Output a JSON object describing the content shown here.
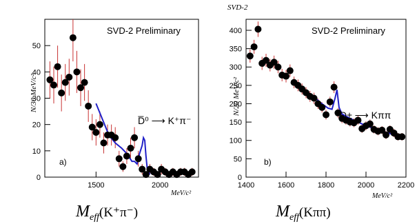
{
  "top_label": "SVD-2",
  "chart_data": [
    {
      "type": "scatter",
      "panel_label": "a)",
      "preliminary": "SVD-2 Preliminary",
      "decay": "D̅⁰ ⟶ K⁺π⁻",
      "ylabel": "N/30 MeV/c²",
      "xlabel": "M_eff(K⁺π⁻)",
      "xlabel_main": "M",
      "xlabel_sub": "eff",
      "xlabel_paren": "(K⁺π⁻)",
      "xunit": "MeV/c²",
      "xlim": [
        1100,
        2300
      ],
      "ylim": [
        0,
        60
      ],
      "xticks": [
        1500,
        2000
      ],
      "yticks": [
        0,
        10,
        20,
        30,
        40,
        50
      ],
      "x": [
        1140,
        1170,
        1200,
        1230,
        1260,
        1290,
        1320,
        1350,
        1380,
        1410,
        1440,
        1470,
        1500,
        1530,
        1560,
        1590,
        1620,
        1650,
        1680,
        1710,
        1740,
        1770,
        1800,
        1830,
        1860,
        1890,
        1920,
        1950,
        1980,
        2010,
        2040,
        2070,
        2100,
        2130,
        2160,
        2190,
        2220,
        2250
      ],
      "y": [
        37,
        35,
        42,
        32,
        36,
        38,
        53,
        40,
        34,
        36,
        27,
        19,
        17,
        20,
        13,
        16,
        16,
        15,
        7,
        4,
        8,
        11,
        15,
        7,
        3,
        1,
        3,
        2,
        1,
        3,
        2,
        1,
        2,
        1,
        2,
        2,
        1,
        2
      ],
      "yerr": [
        7,
        7,
        8,
        7,
        7,
        7,
        9,
        8,
        7,
        7,
        6,
        5,
        5,
        5,
        4,
        4,
        4,
        4,
        3,
        2,
        3,
        4,
        4,
        3,
        2,
        1,
        2,
        1.5,
        1,
        2,
        1.5,
        1,
        1.5,
        1,
        1.5,
        1.5,
        1,
        1.5
      ],
      "fit": {
        "x": [
          1500,
          1550,
          1600,
          1650,
          1700,
          1740,
          1760,
          1780,
          1800,
          1820,
          1840,
          1860,
          1870,
          1880,
          1890,
          1900,
          1920
        ],
        "y": [
          28,
          22,
          16,
          13,
          11,
          9,
          7.5,
          6,
          6,
          5,
          9,
          12,
          15,
          14,
          8,
          3,
          1
        ]
      }
    },
    {
      "type": "scatter",
      "panel_label": "b)",
      "preliminary": "SVD-2 Preliminary",
      "decay": "D± ⟶ Kππ",
      "ylabel": "N/20 MeV/c²",
      "xlabel": "M_eff(Kππ)",
      "xlabel_main": "M",
      "xlabel_sub": "eff",
      "xlabel_paren": "(Kππ)",
      "xunit": "MeV/c²",
      "xlim": [
        1400,
        2200
      ],
      "ylim": [
        0,
        430
      ],
      "xticks": [
        1400,
        1600,
        1800,
        2000,
        2200
      ],
      "yticks": [
        0,
        50,
        100,
        150,
        200,
        250,
        300,
        350,
        400
      ],
      "x": [
        1420,
        1440,
        1460,
        1480,
        1500,
        1520,
        1540,
        1560,
        1580,
        1600,
        1620,
        1640,
        1660,
        1680,
        1700,
        1720,
        1740,
        1760,
        1780,
        1800,
        1820,
        1840,
        1860,
        1880,
        1900,
        1920,
        1940,
        1960,
        1980,
        2000,
        2020,
        2040,
        2060,
        2080,
        2100,
        2120,
        2140,
        2160,
        2180
      ],
      "y": [
        330,
        355,
        403,
        310,
        318,
        305,
        313,
        300,
        278,
        275,
        290,
        258,
        250,
        240,
        230,
        220,
        215,
        200,
        190,
        170,
        205,
        245,
        175,
        160,
        155,
        150,
        148,
        155,
        132,
        140,
        145,
        130,
        125,
        128,
        115,
        130,
        120,
        110,
        110
      ],
      "yerr": [
        18,
        19,
        21,
        18,
        18,
        17,
        18,
        17,
        17,
        17,
        17,
        16,
        16,
        15,
        15,
        15,
        15,
        14,
        14,
        13,
        14,
        16,
        13,
        13,
        12,
        12,
        12,
        12,
        11,
        12,
        12,
        11,
        11,
        11,
        11,
        11,
        11,
        10,
        10
      ],
      "fit": {
        "x": [
          1660,
          1700,
          1740,
          1780,
          1810,
          1830,
          1845,
          1855,
          1865,
          1880,
          1920,
          1980,
          2040,
          2100,
          2160,
          2190
        ],
        "y": [
          252,
          235,
          218,
          200,
          188,
          185,
          215,
          238,
          190,
          172,
          160,
          145,
          132,
          122,
          112,
          108
        ]
      }
    }
  ]
}
